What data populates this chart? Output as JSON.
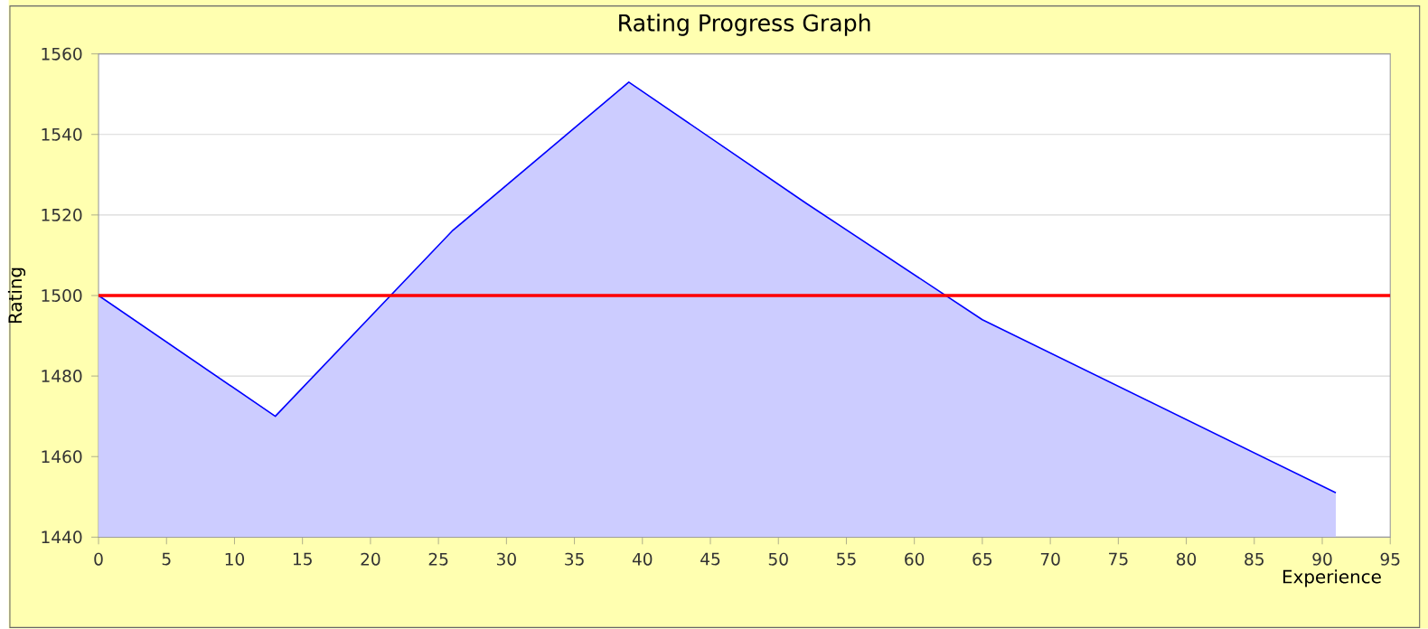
{
  "chart_data": {
    "type": "area",
    "title": "Rating Progress Graph",
    "xlabel": "Experience",
    "ylabel": "Rating",
    "x": [
      0,
      13,
      26,
      39,
      52,
      65,
      91
    ],
    "series": [
      {
        "color": "#0000ff",
        "values": [
          1500,
          1470,
          1516,
          1553,
          1523,
          1494,
          1451
        ]
      }
    ],
    "xlim": [
      0,
      95
    ],
    "xticks": [
      0,
      5,
      10,
      15,
      20,
      25,
      30,
      35,
      40,
      45,
      50,
      55,
      60,
      65,
      70,
      75,
      80,
      85,
      90,
      95
    ],
    "ylim": [
      1440,
      1560
    ],
    "yticks": [
      1440,
      1460,
      1480,
      1500,
      1520,
      1540,
      1560
    ],
    "ref_lines": [
      {
        "axis": "y",
        "value": 1500,
        "color": "#ff0000"
      }
    ],
    "grid": "y"
  }
}
